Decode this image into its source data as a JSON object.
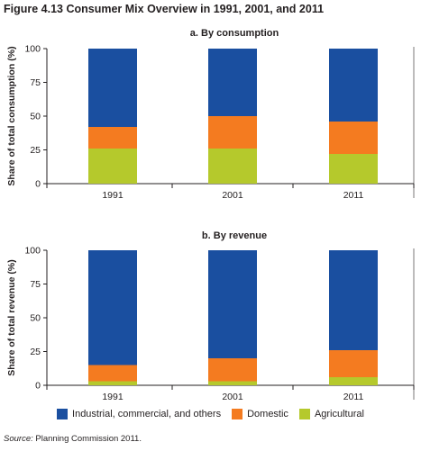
{
  "figure_title": "Figure 4.13  Consumer Mix Overview in 1991, 2001, and 2011",
  "source_label": "Source:",
  "source_text": "Planning Commission 2011.",
  "legend": [
    {
      "label": "Industrial, commercial, and others",
      "color": "#1a4fa0"
    },
    {
      "label": "Domestic",
      "color": "#f47b20"
    },
    {
      "label": "Agricultural",
      "color": "#b5c92c"
    }
  ],
  "chart_data": [
    {
      "type": "bar",
      "stacked": true,
      "title": "a. By consumption",
      "ylabel": "Share of total consumption (%)",
      "xlabel": "",
      "categories": [
        "1991",
        "2001",
        "2011"
      ],
      "ylim": [
        0,
        100
      ],
      "yticks": [
        0,
        25,
        50,
        75,
        100
      ],
      "series": [
        {
          "name": "Agricultural",
          "color": "#b5c92c",
          "values": [
            26,
            26,
            22
          ]
        },
        {
          "name": "Domestic",
          "color": "#f47b20",
          "values": [
            16,
            24,
            24
          ]
        },
        {
          "name": "Industrial, commercial, and others",
          "color": "#1a4fa0",
          "values": [
            58,
            50,
            54
          ]
        }
      ]
    },
    {
      "type": "bar",
      "stacked": true,
      "title": "b. By revenue",
      "ylabel": "Share of total revenue (%)",
      "xlabel": "",
      "categories": [
        "1991",
        "2001",
        "2011"
      ],
      "ylim": [
        0,
        100
      ],
      "yticks": [
        0,
        25,
        50,
        75,
        100
      ],
      "series": [
        {
          "name": "Agricultural",
          "color": "#b5c92c",
          "values": [
            3,
            3,
            6
          ]
        },
        {
          "name": "Domestic",
          "color": "#f47b20",
          "values": [
            12,
            17,
            20
          ]
        },
        {
          "name": "Industrial, commercial, and others",
          "color": "#1a4fa0",
          "values": [
            85,
            80,
            74
          ]
        }
      ]
    }
  ]
}
